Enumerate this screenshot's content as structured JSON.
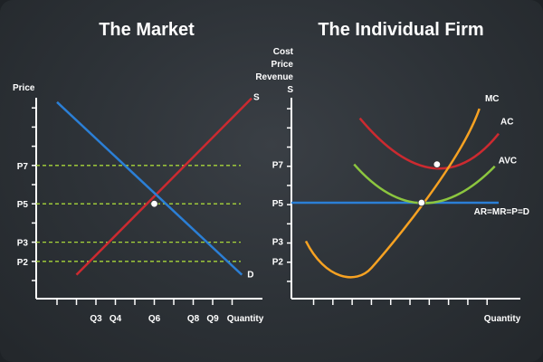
{
  "colors": {
    "axis": "#ffffff",
    "supply": "#cc2a30",
    "demand": "#2b7fd6",
    "guide": "#a8d63a",
    "mc": "#f7a222",
    "ac": "#cc2a30",
    "avc": "#8cc63f",
    "ar": "#2b7fd6",
    "point": "#ffffff"
  },
  "chart_data": [
    {
      "type": "line",
      "title": "The Market",
      "xlabel": "Quantity",
      "ylabel": "Price",
      "x_ticks": [
        "Q3",
        "Q4",
        "Q6",
        "Q8",
        "Q9"
      ],
      "y_ticks": [
        "P2",
        "P3",
        "P5",
        "P7"
      ],
      "grid": false,
      "guide_lines": [
        "P2",
        "P3",
        "P5",
        "P7"
      ],
      "series": [
        {
          "name": "S",
          "points": [
            [
              1,
              0.3
            ],
            [
              10,
              9.5
            ]
          ]
        },
        {
          "name": "D",
          "points": [
            [
              0,
              9.3
            ],
            [
              9.5,
              0.3
            ]
          ]
        }
      ],
      "equilibrium": {
        "x": "Q6",
        "y": "P5"
      }
    },
    {
      "type": "line",
      "title": "The Individual Firm",
      "xlabel": "Quantity",
      "ylabel_lines": [
        "Cost",
        "Price",
        "Revenue",
        "S"
      ],
      "y_ticks": [
        "P2",
        "P3",
        "P5",
        "P7"
      ],
      "grid": false,
      "series": [
        {
          "name": "MC",
          "points": [
            [
              0.3,
              2.8
            ],
            [
              2.5,
              1.3
            ],
            [
              6.5,
              5.0
            ],
            [
              9.4,
              9.4
            ]
          ]
        },
        {
          "name": "AC",
          "points": [
            [
              3.0,
              9.3
            ],
            [
              6.9,
              7.0
            ],
            [
              10.0,
              8.5
            ]
          ]
        },
        {
          "name": "AVC",
          "points": [
            [
              2.5,
              7.0
            ],
            [
              6.0,
              5.0
            ],
            [
              9.8,
              6.9
            ]
          ]
        },
        {
          "name": "AR=MR=P=D",
          "points": [
            [
              0,
              5.0
            ],
            [
              10,
              5.0
            ]
          ]
        }
      ],
      "points": [
        {
          "x": 6.0,
          "y": 5.0
        },
        {
          "x": 6.8,
          "y": 7.0
        }
      ]
    }
  ]
}
